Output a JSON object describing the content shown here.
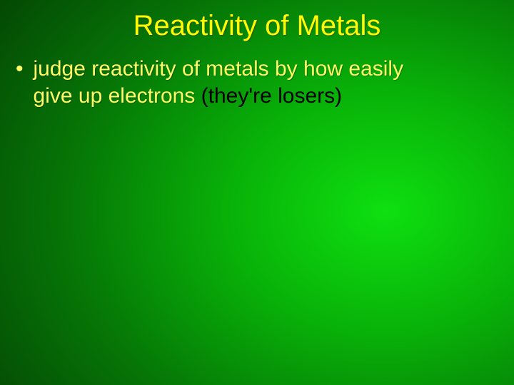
{
  "slide": {
    "title": "Reactivity of Metals",
    "bullet_marker": "•",
    "line1_yellow": "judge reactivity of metals by how easily",
    "line2_yellow": "give up electrons ",
    "line2_black": "(they're losers)",
    "background": {
      "gradient_center": "#0ee010",
      "gradient_mid": "#067506",
      "gradient_edge": "#022002"
    },
    "colors": {
      "title_color": "#ffff00",
      "body_yellow": "#ffff66",
      "body_black": "#000000"
    },
    "typography": {
      "title_fontsize": 40,
      "body_fontsize": 30,
      "font_family": "Arial"
    }
  }
}
